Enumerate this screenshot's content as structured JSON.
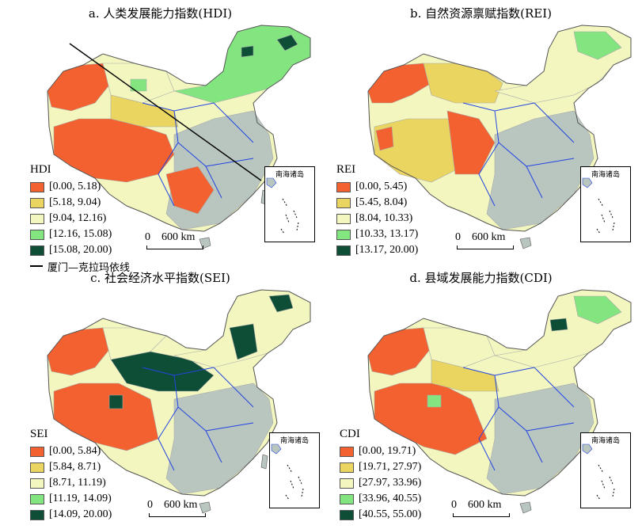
{
  "colors": {
    "class1": "#f2612f",
    "class2": "#ead560",
    "class3": "#f3f7bf",
    "class4": "#82e57f",
    "class5": "#0f4e36",
    "background_region": "#b9c6c0",
    "boundary_blue": "#2345e0",
    "boundary_gray": "#a9a9a9"
  },
  "panels": [
    {
      "id": "hdi",
      "title": "a. 人类发展能力指数(HDI)",
      "legend_title": "HDI",
      "classes": [
        "[0.00, 5.18)",
        "[5.18, 9.04)",
        "[9.04, 12.16)",
        "[12.16, 15.08)",
        "[15.08, 20.00)"
      ],
      "extra_legend": "厦门—克拉玛依线",
      "scale_label": "0    600 km",
      "inset_label": "南海诸岛"
    },
    {
      "id": "rei",
      "title": "b. 自然资源禀赋指数(REI)",
      "legend_title": "REI",
      "classes": [
        "[0.00, 5.45)",
        "[5.45, 8.04)",
        "[8.04, 10.33)",
        "[10.33, 13.17)",
        "[13.17, 20.00)"
      ],
      "scale_label": "0    600 km",
      "inset_label": "南海诸岛"
    },
    {
      "id": "sei",
      "title": "c. 社会经济水平指数(SEI)",
      "legend_title": "SEI",
      "classes": [
        "[0.00, 5.84)",
        "[5.84, 8.71)",
        "[8.71, 11.19)",
        "[11.19, 14.09)",
        "[14.09, 20.00)"
      ],
      "scale_label": "0    600 km",
      "inset_label": "南海诸岛"
    },
    {
      "id": "cdi",
      "title": "d. 县域发展能力指数(CDI)",
      "legend_title": "CDI",
      "classes": [
        "[0.00, 19.71)",
        "[19.71, 27.97)",
        "[27.97, 33.96)",
        "[33.96, 40.55)",
        "[40.55, 55.00)"
      ],
      "scale_label": "0    600 km",
      "inset_label": "南海诸岛"
    }
  ]
}
